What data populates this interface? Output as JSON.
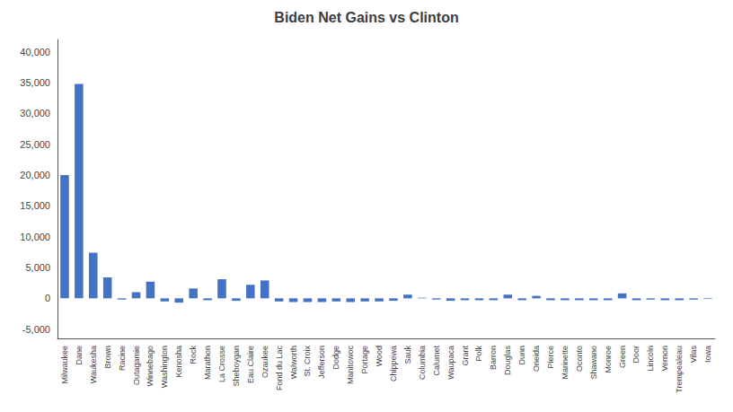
{
  "chart_data": {
    "type": "bar",
    "title": "Biden Net Gains vs Clinton",
    "categories": [
      "Milwaukee",
      "Dane",
      "Waukesha",
      "Brown",
      "Racine",
      "Outagamie",
      "Winnebago",
      "Washington",
      "Kenosha",
      "Rock",
      "Marathon",
      "La Crosse",
      "Sheboygan",
      "Eau Claire",
      "Ozaukee",
      "Fond du Lac",
      "Walworth",
      "St. Croix",
      "Jefferson",
      "Dodge",
      "Manitowoc",
      "Portage",
      "Wood",
      "Chippewa",
      "Sauk",
      "Columbia",
      "Calumet",
      "Waupaca",
      "Grant",
      "Polk",
      "Barron",
      "Douglas",
      "Dunn",
      "Oneida",
      "Pierce",
      "Marinette",
      "Oconto",
      "Shawano",
      "Monroe",
      "Green",
      "Door",
      "Lincoln",
      "Vernon",
      "Trempealeau",
      "Vilas",
      "Iowa"
    ],
    "values": [
      20000,
      34800,
      7400,
      3400,
      -200,
      1000,
      2700,
      -500,
      -700,
      1600,
      -300,
      3100,
      -400,
      2200,
      2900,
      -500,
      -600,
      -600,
      -600,
      -500,
      -600,
      -500,
      -500,
      -400,
      600,
      100,
      -200,
      -400,
      -300,
      -300,
      -300,
      600,
      -300,
      400,
      -300,
      -300,
      -300,
      -300,
      -300,
      800,
      -300,
      -200,
      -300,
      -300,
      -200,
      -100
    ],
    "color": "#4472C4",
    "ylim": [
      -6500,
      42000
    ],
    "yticks": [
      {
        "value": -5000,
        "label": "-5,000"
      },
      0,
      {
        "value": 5000,
        "label": "5,000"
      },
      {
        "value": 10000,
        "label": "10,000"
      },
      {
        "value": 15000,
        "label": "15,000"
      },
      {
        "value": 20000,
        "label": "20,000"
      },
      {
        "value": 25000,
        "label": "25,000"
      },
      {
        "value": 30000,
        "label": "30,000"
      },
      {
        "value": 35000,
        "label": "35,000"
      },
      {
        "value": 40000,
        "label": "40,000"
      }
    ],
    "grid": false
  }
}
